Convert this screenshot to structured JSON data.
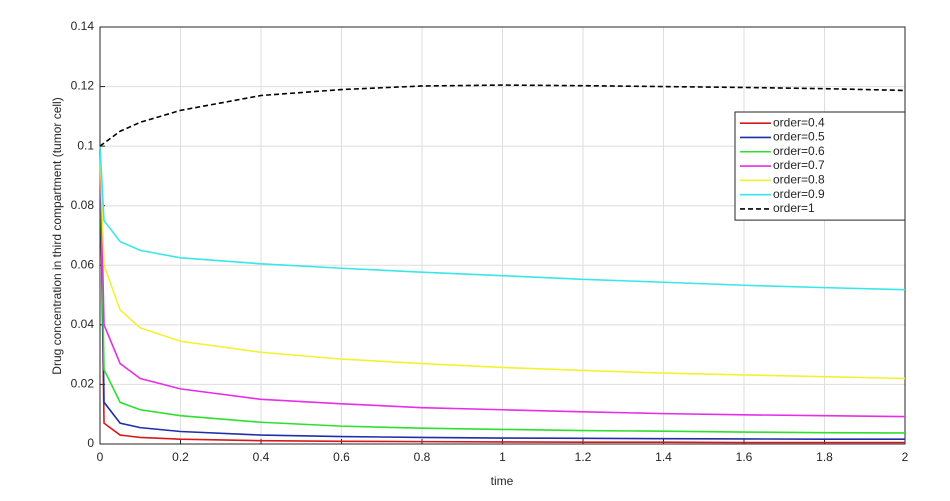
{
  "chart_data": {
    "type": "line",
    "x_label": "time",
    "y_label": "Drug concentration in third compartment (tumor cell)",
    "x": [
      0,
      0.01,
      0.05,
      0.1,
      0.2,
      0.4,
      0.6,
      0.8,
      1,
      1.2,
      1.4,
      1.6,
      1.8,
      2
    ],
    "series": [
      {
        "name": "order=0.4",
        "color": "#d7191c",
        "dashed": false,
        "values": [
          0.1,
          0.007,
          0.003,
          0.0022,
          0.0016,
          0.0011,
          0.0009,
          0.0008,
          0.0007,
          0.0006,
          0.0006,
          0.0005,
          0.0005,
          0.0005
        ]
      },
      {
        "name": "order=0.5",
        "color": "#1f2fa8",
        "dashed": false,
        "values": [
          0.1,
          0.014,
          0.007,
          0.0055,
          0.0042,
          0.003,
          0.0025,
          0.0022,
          0.002,
          0.0019,
          0.0018,
          0.0017,
          0.0016,
          0.0016
        ]
      },
      {
        "name": "order=0.6",
        "color": "#2ee02e",
        "dashed": false,
        "values": [
          0.1,
          0.025,
          0.014,
          0.0115,
          0.0095,
          0.0073,
          0.006,
          0.0053,
          0.0049,
          0.0045,
          0.0043,
          0.004,
          0.0038,
          0.0037
        ]
      },
      {
        "name": "order=0.7",
        "color": "#e62ee6",
        "dashed": false,
        "values": [
          0.1,
          0.04,
          0.027,
          0.022,
          0.0185,
          0.015,
          0.0135,
          0.0122,
          0.0115,
          0.0108,
          0.0102,
          0.0098,
          0.0095,
          0.0092
        ]
      },
      {
        "name": "order=0.8",
        "color": "#f2f230",
        "dashed": false,
        "values": [
          0.1,
          0.06,
          0.045,
          0.039,
          0.0345,
          0.0308,
          0.0285,
          0.027,
          0.0257,
          0.0247,
          0.0238,
          0.0232,
          0.0226,
          0.022
        ]
      },
      {
        "name": "order=0.9",
        "color": "#3ae6ea",
        "dashed": false,
        "values": [
          0.1,
          0.075,
          0.068,
          0.065,
          0.0625,
          0.0605,
          0.059,
          0.0577,
          0.0565,
          0.0553,
          0.0543,
          0.0533,
          0.0525,
          0.0518
        ]
      },
      {
        "name": "order=1",
        "color": "#000000",
        "dashed": true,
        "values": [
          0.1,
          0.101,
          0.105,
          0.108,
          0.112,
          0.117,
          0.119,
          0.1202,
          0.1205,
          0.1203,
          0.12,
          0.1197,
          0.1193,
          0.1187
        ]
      }
    ],
    "xlim": [
      0,
      2
    ],
    "xticks": [
      0,
      0.2,
      0.4,
      0.6,
      0.8,
      1,
      1.2,
      1.4,
      1.6,
      1.8,
      2
    ],
    "ylim": [
      0,
      0.14
    ],
    "yticks": [
      0,
      0.02,
      0.04,
      0.06,
      0.08,
      0.1,
      0.12,
      0.14
    ],
    "grid": true,
    "legend": "upper right"
  }
}
